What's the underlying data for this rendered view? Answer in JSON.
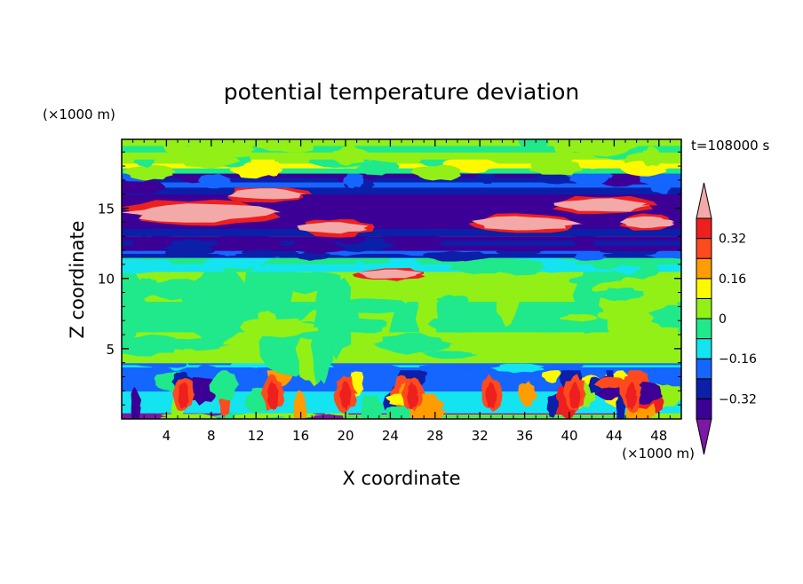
{
  "chart_data": {
    "type": "heatmap",
    "title": "potential temperature deviation",
    "xlabel": "X coordinate",
    "ylabel": "Z coordinate",
    "x_unit_label": "(×1000 m)",
    "y_unit_label": "(×1000 m)",
    "time_label": "t=108000 s",
    "xlim": [
      0,
      50
    ],
    "ylim": [
      0,
      19.9
    ],
    "x_ticks": [
      4,
      8,
      12,
      16,
      20,
      24,
      28,
      32,
      36,
      40,
      44,
      48
    ],
    "x_tick_labels": [
      "4",
      "8",
      "12",
      "16",
      "20",
      "24",
      "28",
      "32",
      "36",
      "40",
      "44",
      "48"
    ],
    "y_ticks": [
      5,
      10,
      15
    ],
    "y_tick_labels": [
      "5",
      "10",
      "15"
    ],
    "colorbar": {
      "levels": [
        -0.4,
        -0.32,
        -0.24,
        -0.16,
        -0.08,
        0,
        0.08,
        0.16,
        0.24,
        0.32,
        0.4
      ],
      "labels": [
        {
          "value": 0.32,
          "text": "0.32"
        },
        {
          "value": 0.16,
          "text": "0.16"
        },
        {
          "value": 0,
          "text": "0"
        },
        {
          "value": -0.16,
          "text": "−0.16"
        },
        {
          "value": -0.32,
          "text": "−0.32"
        }
      ],
      "colors": [
        "#7c17a6",
        "#3c0096",
        "#0b1fa9",
        "#1565ff",
        "#14e4ef",
        "#1fe98a",
        "#92f016",
        "#fff900",
        "#ff9c00",
        "#ff4a1e",
        "#ee1f1f",
        "#f4a9a9"
      ]
    },
    "bands": [
      {
        "z0": 0.0,
        "z1": 0.4,
        "colors": [
          0,
          6,
          5,
          6
        ]
      },
      {
        "z0": 0.4,
        "z1": 3.5,
        "regime": "boundary-cells"
      },
      {
        "z0": 3.5,
        "z1": 4.0,
        "colors": [
          3,
          4,
          3
        ]
      },
      {
        "z0": 4.0,
        "z1": 10.5,
        "colors": [
          6,
          5,
          6
        ]
      },
      {
        "z0": 10.5,
        "z1": 11.5,
        "colors": [
          5,
          4
        ]
      },
      {
        "z0": 11.5,
        "z1": 12.0,
        "colors": [
          3,
          2
        ]
      },
      {
        "z0": 12.0,
        "z1": 13.0,
        "colors": [
          1,
          2,
          1
        ]
      },
      {
        "z0": 13.0,
        "z1": 16.5,
        "regime": "pink-layer"
      },
      {
        "z0": 16.5,
        "z1": 17.5,
        "colors": [
          1,
          2,
          3
        ]
      },
      {
        "z0": 17.5,
        "z1": 18.5,
        "colors": [
          6,
          7,
          5
        ]
      },
      {
        "z0": 18.5,
        "z1": 19.9,
        "colors": [
          6,
          5,
          6
        ]
      }
    ]
  }
}
